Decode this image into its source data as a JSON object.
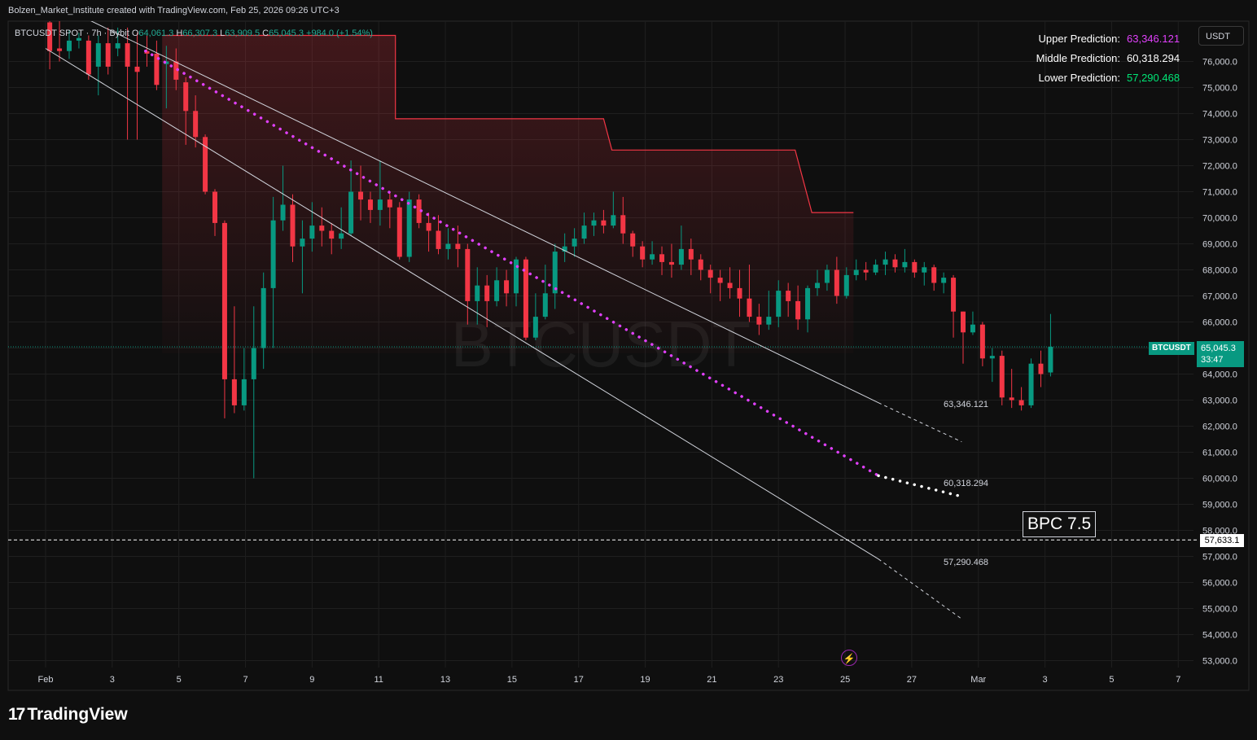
{
  "header": {
    "attribution": "Bolzen_Market_Institute created with TradingView.com, Feb 25, 2026 09:26 UTC+3"
  },
  "legend": {
    "symbol": "BTCUSDT SPOT · 7h · Bybit",
    "open_key": "O",
    "open": "64,061.3",
    "high_key": "H",
    "high": "66,307.3",
    "low_key": "L",
    "low": "63,909.5",
    "close_key": "C",
    "close": "65,045.3",
    "change": "+984.0 (+1.54%)"
  },
  "currency_button": "USDT",
  "predictions": [
    {
      "label": "Upper Prediction:",
      "value": "63,346.121",
      "color": "#e040fb"
    },
    {
      "label": "Middle Prediction:",
      "value": "60,318.294",
      "color": "#ffffff"
    },
    {
      "label": "Lower Prediction:",
      "value": "57,290.468",
      "color": "#00e676"
    }
  ],
  "price_tag": {
    "symbol": "BTCUSDT",
    "price": "65,045.3",
    "countdown": "33:47"
  },
  "dashed_level": "57,633.1",
  "projection_labels": {
    "upper": "63,346.121",
    "middle": "60,318.294",
    "lower": "57,290.468"
  },
  "bpc_label": "BPC 7.5",
  "watermark": "BTCUSDT",
  "footer": {
    "logo_mark": "17",
    "logo_text": "TradingView"
  },
  "icons": {
    "bolt": "lightning-bolt-icon",
    "logo": "tradingview-logo-icon"
  },
  "colors": {
    "up": "#089981",
    "down": "#f23645",
    "background": "#0f0f0f",
    "upper_dots": "#e040fb",
    "zone": "#f23645"
  },
  "chart_data": {
    "type": "candlestick",
    "y_axis_labels": [
      "76,000.0",
      "75,000.0",
      "74,000.0",
      "73,000.0",
      "72,000.0",
      "71,000.0",
      "70,000.0",
      "69,000.0",
      "68,000.0",
      "67,000.0",
      "66,000.0",
      "65,000.0",
      "64,000.0",
      "63,000.0",
      "62,000.0",
      "61,000.0",
      "60,000.0",
      "59,000.0",
      "58,000.0",
      "57,000.0",
      "56,000.0",
      "55,000.0",
      "54,000.0",
      "53,000.0"
    ],
    "x_axis_labels": [
      "Feb",
      "3",
      "5",
      "7",
      "9",
      "11",
      "13",
      "15",
      "17",
      "19",
      "21",
      "23",
      "25",
      "27",
      "Mar",
      "3",
      "5",
      "7"
    ],
    "ylim": [
      52700,
      77000
    ],
    "grid": true,
    "candle_period_hours": 7,
    "candles": [
      [
        77500,
        76400,
        77700,
        75700
      ],
      [
        76500,
        76400,
        77800,
        76000
      ],
      [
        76400,
        76800,
        77200,
        76100
      ],
      [
        76800,
        76900,
        77100,
        76500
      ],
      [
        76800,
        75500,
        77000,
        75300
      ],
      [
        75800,
        76700,
        77000,
        74700
      ],
      [
        76700,
        75800,
        77300,
        75500
      ],
      [
        76500,
        76700,
        77300,
        76200
      ],
      [
        76700,
        75800,
        77300,
        73000
      ],
      [
        75800,
        75600,
        77100,
        73000
      ],
      [
        76400,
        76300,
        77000,
        75800
      ],
      [
        76300,
        75100,
        76800,
        74900
      ],
      [
        75900,
        76000,
        76600,
        74200
      ],
      [
        76000,
        75300,
        76500,
        74900
      ],
      [
        75200,
        74100,
        75400,
        72800
      ],
      [
        74100,
        73100,
        74700,
        72700
      ],
      [
        73100,
        71000,
        73200,
        70900
      ],
      [
        71000,
        69800,
        71100,
        69300
      ],
      [
        69800,
        63800,
        69900,
        62300
      ],
      [
        63800,
        62800,
        66600,
        62500
      ],
      [
        62800,
        63800,
        65000,
        62600
      ],
      [
        63800,
        65000,
        66600,
        60000
      ],
      [
        65000,
        67300,
        67900,
        64200
      ],
      [
        67300,
        69900,
        70800,
        65000
      ],
      [
        69900,
        70500,
        72000,
        69500
      ],
      [
        70500,
        68900,
        70900,
        68300
      ],
      [
        68900,
        69200,
        69900,
        67100
      ],
      [
        69200,
        69700,
        70600,
        68700
      ],
      [
        69700,
        69500,
        70400,
        68900
      ],
      [
        69500,
        69200,
        69800,
        68600
      ],
      [
        69200,
        69400,
        70400,
        68800
      ],
      [
        69400,
        71000,
        72200,
        69300
      ],
      [
        71000,
        70700,
        72000,
        69900
      ],
      [
        70700,
        70300,
        71000,
        69800
      ],
      [
        70300,
        70700,
        72200,
        69700
      ],
      [
        70700,
        70400,
        71000,
        69600
      ],
      [
        70400,
        68500,
        70600,
        68400
      ],
      [
        68500,
        70700,
        71000,
        68300
      ],
      [
        70700,
        69800,
        70900,
        69600
      ],
      [
        69800,
        69500,
        70200,
        68700
      ],
      [
        69500,
        68800,
        70100,
        68600
      ],
      [
        68800,
        69000,
        69600,
        68400
      ],
      [
        69000,
        68800,
        69700,
        68100
      ],
      [
        68800,
        66800,
        69000,
        65900
      ],
      [
        66800,
        67400,
        68100,
        65900
      ],
      [
        67400,
        66800,
        67800,
        65800
      ],
      [
        66800,
        67600,
        68100,
        66600
      ],
      [
        67600,
        67100,
        68000,
        66600
      ],
      [
        67100,
        68400,
        68500,
        66600
      ],
      [
        68400,
        65400,
        68500,
        65300
      ],
      [
        65400,
        66200,
        67100,
        65300
      ],
      [
        66200,
        67100,
        68200,
        66100
      ],
      [
        67100,
        68700,
        69000,
        66500
      ],
      [
        68700,
        68900,
        69400,
        68300
      ],
      [
        68900,
        69200,
        69600,
        68500
      ],
      [
        69200,
        69700,
        70200,
        69000
      ],
      [
        69700,
        69900,
        70200,
        69300
      ],
      [
        69900,
        69700,
        70300,
        69400
      ],
      [
        69700,
        70100,
        71000,
        69600
      ],
      [
        70100,
        69400,
        70800,
        69000
      ],
      [
        69400,
        68900,
        69500,
        68500
      ],
      [
        68900,
        68400,
        69100,
        68100
      ],
      [
        68400,
        68600,
        69100,
        68200
      ],
      [
        68600,
        68300,
        68900,
        67800
      ],
      [
        68300,
        68200,
        69000,
        67700
      ],
      [
        68200,
        68800,
        69700,
        68000
      ],
      [
        68800,
        68400,
        69200,
        67800
      ],
      [
        68400,
        68000,
        68600,
        67600
      ],
      [
        68000,
        67700,
        68200,
        67100
      ],
      [
        67700,
        67500,
        68000,
        66800
      ],
      [
        67500,
        67300,
        68100,
        66900
      ],
      [
        67300,
        66900,
        68000,
        66200
      ],
      [
        66900,
        66200,
        68200,
        66000
      ],
      [
        66200,
        65900,
        66700,
        65500
      ],
      [
        65900,
        66200,
        67200,
        65700
      ],
      [
        66200,
        67200,
        67600,
        65800
      ],
      [
        67200,
        66800,
        67500,
        66200
      ],
      [
        66800,
        66100,
        67400,
        65700
      ],
      [
        66100,
        67300,
        67400,
        65600
      ],
      [
        67300,
        67500,
        68000,
        67000
      ],
      [
        67500,
        68000,
        68200,
        67200
      ],
      [
        68000,
        67000,
        68500,
        66700
      ],
      [
        67000,
        67800,
        68100,
        66900
      ],
      [
        67800,
        68000,
        68400,
        67600
      ],
      [
        68000,
        67900,
        68300,
        67600
      ],
      [
        67900,
        68200,
        68400,
        67800
      ],
      [
        68200,
        68400,
        68700,
        67800
      ],
      [
        68400,
        68100,
        68600,
        67900
      ],
      [
        68100,
        68300,
        68800,
        67900
      ],
      [
        68300,
        67900,
        68400,
        67700
      ],
      [
        67900,
        68100,
        68300,
        67400
      ],
      [
        68100,
        67500,
        68200,
        67200
      ],
      [
        67500,
        67700,
        67900,
        67100
      ],
      [
        67700,
        66400,
        67800,
        65400
      ],
      [
        66400,
        65600,
        66400,
        64400
      ],
      [
        65600,
        65900,
        66400,
        65500
      ],
      [
        65900,
        64600,
        66000,
        64300
      ],
      [
        64600,
        64700,
        65000,
        63700
      ],
      [
        64700,
        63100,
        64900,
        62800
      ],
      [
        63100,
        63000,
        64200,
        62700
      ],
      [
        63000,
        62800,
        63500,
        62600
      ],
      [
        62800,
        64400,
        64600,
        62700
      ],
      [
        64400,
        64000,
        64900,
        63500
      ],
      [
        64061.3,
        65045.3,
        66307.3,
        63909.5
      ]
    ],
    "projection_lines": {
      "upper_points": [
        [
          "Feb 1",
          78400
        ],
        [
          "Feb 26",
          62900
        ]
      ],
      "middle_points": [
        [
          "Feb 4",
          76400
        ],
        [
          "Feb 26",
          60100
        ]
      ],
      "lower_points": [
        [
          "Feb 1",
          76500
        ],
        [
          "Feb 26",
          56900
        ]
      ]
    },
    "resistance_zone_steps": [
      [
        "Feb 4 12:00",
        77000
      ],
      [
        "Feb 11 12:00",
        77000
      ],
      [
        "Feb 11 12:00",
        73800
      ],
      [
        "Feb 17 18:00",
        73800
      ],
      [
        "Feb 18",
        72600
      ],
      [
        "Feb 23 12:00",
        72600
      ],
      [
        "Feb 24",
        70200
      ],
      [
        "Feb 25 6:00",
        70200
      ]
    ],
    "current_price": 65045.3,
    "dashed_level_value": 57633.1
  }
}
